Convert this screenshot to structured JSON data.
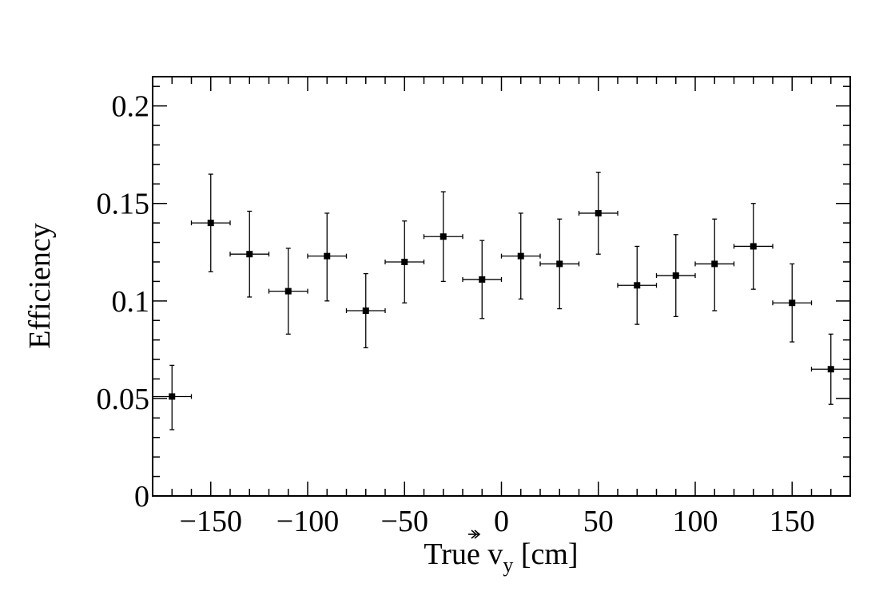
{
  "chart_data": {
    "type": "scatter",
    "title": "",
    "xlabel": {
      "prefix": "True ",
      "symbol": "v",
      "subscript": "y",
      "suffix": " [cm]"
    },
    "ylabel": "Efficiency",
    "xlim": [
      -180,
      180
    ],
    "ylim": [
      0,
      0.215
    ],
    "x_ticks": [
      -150,
      -100,
      -50,
      0,
      50,
      100,
      150
    ],
    "x_tick_labels": [
      "−150",
      "−100",
      "−50",
      "0",
      "50",
      "100",
      "150"
    ],
    "y_ticks": [
      0,
      0.05,
      0.1,
      0.15,
      0.2
    ],
    "y_tick_labels": [
      "0",
      "0.05",
      "0.1",
      "0.15",
      "0.2"
    ],
    "grid": false,
    "legend": "none",
    "marker_color": "#000000",
    "series": [
      {
        "x": [
          -170,
          -150,
          -130,
          -110,
          -90,
          -70,
          -50,
          -30,
          -10,
          10,
          30,
          50,
          70,
          90,
          110,
          130,
          150,
          170
        ],
        "y": [
          0.051,
          0.14,
          0.124,
          0.105,
          0.123,
          0.095,
          0.12,
          0.133,
          0.111,
          0.123,
          0.119,
          0.145,
          0.108,
          0.113,
          0.119,
          0.128,
          0.099,
          0.065
        ],
        "x_err": [
          10,
          10,
          10,
          10,
          10,
          10,
          10,
          10,
          10,
          10,
          10,
          10,
          10,
          10,
          10,
          10,
          10,
          10
        ],
        "y_err_low": [
          0.017,
          0.025,
          0.022,
          0.022,
          0.023,
          0.019,
          0.021,
          0.023,
          0.02,
          0.022,
          0.023,
          0.021,
          0.02,
          0.021,
          0.024,
          0.022,
          0.02,
          0.018
        ],
        "y_err_high": [
          0.016,
          0.025,
          0.022,
          0.022,
          0.022,
          0.019,
          0.021,
          0.023,
          0.02,
          0.022,
          0.023,
          0.021,
          0.02,
          0.021,
          0.023,
          0.022,
          0.02,
          0.018
        ]
      }
    ]
  }
}
